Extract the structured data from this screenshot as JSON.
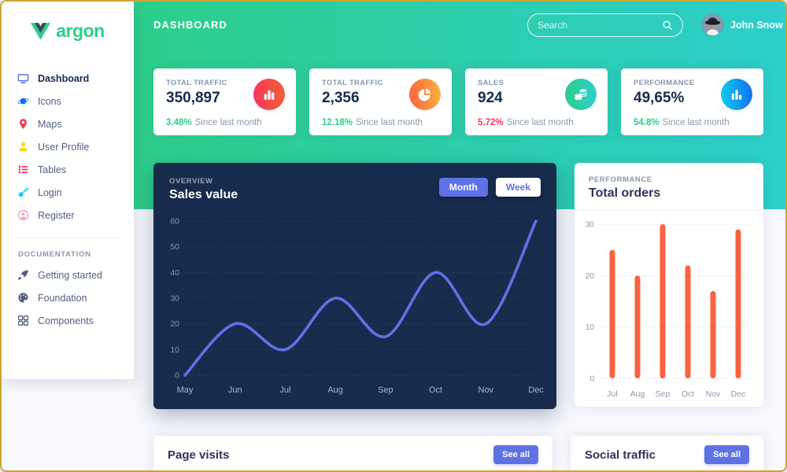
{
  "header": {
    "page_title": "DASHBOARD",
    "search_placeholder": "Search",
    "user_name": "John Snow"
  },
  "sidebar": {
    "logo_text": "argon",
    "nav_items": [
      {
        "label": "Dashboard",
        "icon": "tv-icon",
        "color": "#5e72e4",
        "active": true
      },
      {
        "label": "Icons",
        "icon": "planet-icon",
        "color": "#1171ef",
        "active": false
      },
      {
        "label": "Maps",
        "icon": "pin-icon",
        "color": "#f5365c",
        "active": false
      },
      {
        "label": "User Profile",
        "icon": "person-icon",
        "color": "#ffd600",
        "active": false
      },
      {
        "label": "Tables",
        "icon": "bullet-list-icon",
        "color": "#f5365c",
        "active": false
      },
      {
        "label": "Login",
        "icon": "key-icon",
        "color": "#11cdef",
        "active": false
      },
      {
        "label": "Register",
        "icon": "circle-user-icon",
        "color": "#f3a4b5",
        "active": false
      }
    ],
    "section_label": "DOCUMENTATION",
    "doc_items": [
      {
        "label": "Getting started",
        "icon": "spaceship-icon",
        "color": "#525f7f"
      },
      {
        "label": "Foundation",
        "icon": "palette-icon",
        "color": "#525f7f"
      },
      {
        "label": "Components",
        "icon": "components-icon",
        "color": "#525f7f"
      }
    ]
  },
  "stat_cards": [
    {
      "label": "TOTAL TRAFFIC",
      "value": "350,897",
      "delta": "3.48%",
      "delta_color": "#2dce89",
      "note": "Since last month",
      "icon": "chart-bars-icon",
      "gradient": [
        "#f5365c",
        "#f56036"
      ]
    },
    {
      "label": "TOTAL TRAFFIC",
      "value": "2,356",
      "delta": "12.18%",
      "delta_color": "#2dce89",
      "note": "Since last month",
      "icon": "pie-chart-icon",
      "gradient": [
        "#fb6340",
        "#fbb140"
      ]
    },
    {
      "label": "SALES",
      "value": "924",
      "delta": "5.72%",
      "delta_color": "#f5365c",
      "note": "Since last month",
      "icon": "money-coins-icon",
      "gradient": [
        "#2dce89",
        "#2dcecc"
      ]
    },
    {
      "label": "PERFORMANCE",
      "value": "49,65%",
      "delta": "54.8%",
      "delta_color": "#2dce89",
      "note": "Since last month",
      "icon": "bar-chart-icon",
      "gradient": [
        "#11cdef",
        "#1171ef"
      ]
    }
  ],
  "sales_card": {
    "kicker": "OVERVIEW",
    "title": "Sales value",
    "buttons": [
      {
        "label": "Month",
        "active": true
      },
      {
        "label": "Week",
        "active": false
      }
    ]
  },
  "orders_card": {
    "kicker": "PERFORMANCE",
    "title": "Total orders"
  },
  "page_visits": {
    "title": "Page visits",
    "action_label": "See all"
  },
  "social_traffic": {
    "title": "Social traffic",
    "action_label": "See all"
  },
  "chart_data": [
    {
      "type": "line",
      "title": "Sales value",
      "x": [
        "May",
        "Jun",
        "Jul",
        "Aug",
        "Sep",
        "Oct",
        "Nov",
        "Dec"
      ],
      "values": [
        0,
        20,
        10,
        30,
        15,
        40,
        20,
        60
      ],
      "ylim": [
        0,
        60
      ],
      "yticks": [
        0,
        10,
        20,
        30,
        40,
        50,
        60
      ],
      "line_color": "#5e72e4",
      "grid": "dotted",
      "legend": "none"
    },
    {
      "type": "bar",
      "title": "Total orders",
      "categories": [
        "Jul",
        "Aug",
        "Sep",
        "Oct",
        "Nov",
        "Dec"
      ],
      "values": [
        25,
        20,
        30,
        22,
        17,
        29
      ],
      "ylim": [
        0,
        30
      ],
      "yticks": [
        0,
        10,
        20,
        30
      ],
      "bar_color": "#fb6340",
      "grid": "on",
      "legend": "none"
    }
  ]
}
